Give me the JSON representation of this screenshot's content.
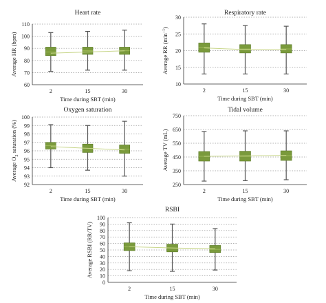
{
  "colors": {
    "box_fill": "#7a9a3c",
    "box_edge": "#5a7a26",
    "whisker": "#555555",
    "trend": "#c8d68a",
    "grid": "#9a9a9a"
  },
  "chart_data": [
    {
      "type": "box",
      "title": "Heart rate",
      "xlabel": "Time during SBT (min)",
      "ylabel": "Average HR (bpm)",
      "ylabel_parts": [
        {
          "t": "Average HR (bpm)"
        }
      ],
      "categories": [
        "2",
        "15",
        "30"
      ],
      "ylim": [
        60,
        110
      ],
      "yticks": [
        60,
        70,
        80,
        90,
        100,
        110
      ],
      "grid": true,
      "boxes": [
        {
          "low": 71,
          "q1": 84,
          "median": 87,
          "q3": 91,
          "high": 103
        },
        {
          "low": 72,
          "q1": 85,
          "median": 88,
          "q3": 91,
          "high": 104
        },
        {
          "low": 72,
          "q1": 85,
          "median": 88,
          "q3": 91,
          "high": 105
        }
      ],
      "trend": [
        86,
        87,
        88
      ]
    },
    {
      "type": "box",
      "title": "Respiratory rate",
      "xlabel": "Time during SBT (min)",
      "ylabel": "Average RR (min−1)",
      "ylabel_parts": [
        {
          "t": "Average RR (min"
        },
        {
          "t": "−1",
          "sup": true
        },
        {
          "t": ")"
        }
      ],
      "categories": [
        "2",
        "15",
        "30"
      ],
      "ylim": [
        10,
        30
      ],
      "yticks": [
        10,
        15,
        20,
        25,
        30
      ],
      "grid": true,
      "boxes": [
        {
          "low": 13,
          "q1": 19.5,
          "median": 21,
          "q3": 22.3,
          "high": 28
        },
        {
          "low": 13,
          "q1": 19.3,
          "median": 20.5,
          "q3": 21.8,
          "high": 27.5
        },
        {
          "low": 13,
          "q1": 19.3,
          "median": 20.5,
          "q3": 21.8,
          "high": 27.3
        }
      ],
      "trend": [
        20.8,
        20.3,
        20.3
      ]
    },
    {
      "type": "box",
      "title": "Oxygen saturation",
      "xlabel": "Time during SBT (min)",
      "ylabel": "Average O2 saturation (%)",
      "ylabel_parts": [
        {
          "t": "Average O"
        },
        {
          "t": "2",
          "sub": true
        },
        {
          "t": " saturation (%)"
        }
      ],
      "categories": [
        "2",
        "15",
        "30"
      ],
      "ylim": [
        92,
        100
      ],
      "yticks": [
        92,
        93,
        94,
        95,
        96,
        97,
        98,
        99,
        100
      ],
      "grid": true,
      "boxes": [
        {
          "low": 94,
          "q1": 96.2,
          "median": 96.6,
          "q3": 97,
          "high": 99.1
        },
        {
          "low": 93.7,
          "q1": 95.8,
          "median": 96.3,
          "q3": 96.8,
          "high": 99
        },
        {
          "low": 93,
          "q1": 95.7,
          "median": 96.2,
          "q3": 96.7,
          "high": 99.5
        }
      ],
      "trend": [
        96.5,
        96.3,
        96.1
      ]
    },
    {
      "type": "box",
      "title": "Tidal volume",
      "xlabel": "Time during SBT (min)",
      "ylabel": "Average TV (mL)",
      "ylabel_parts": [
        {
          "t": "Average TV (mL)"
        }
      ],
      "categories": [
        "2",
        "15",
        "30"
      ],
      "ylim": [
        250,
        750
      ],
      "yticks": [
        250,
        350,
        450,
        550,
        650,
        750
      ],
      "grid": true,
      "boxes": [
        {
          "low": 275,
          "q1": 420,
          "median": 455,
          "q3": 490,
          "high": 635
        },
        {
          "low": 278,
          "q1": 420,
          "median": 455,
          "q3": 492,
          "high": 640
        },
        {
          "low": 285,
          "q1": 425,
          "median": 460,
          "q3": 495,
          "high": 640
        }
      ],
      "trend": [
        455,
        458,
        462
      ]
    },
    {
      "type": "box",
      "title": "RSBI",
      "xlabel": "Time during SBT (min)",
      "ylabel": "Average RSBI (RR/TV)",
      "ylabel_parts": [
        {
          "t": "Average RSBI (RR/TV)"
        }
      ],
      "categories": [
        "2",
        "15",
        "30"
      ],
      "ylim": [
        0,
        100
      ],
      "yticks": [
        0,
        10,
        20,
        30,
        40,
        50,
        60,
        70,
        80,
        90,
        100
      ],
      "grid": true,
      "boxes": [
        {
          "low": 18,
          "q1": 49,
          "median": 55,
          "q3": 61,
          "high": 92
        },
        {
          "low": 17,
          "q1": 47,
          "median": 53,
          "q3": 59,
          "high": 90
        },
        {
          "low": 19,
          "q1": 46,
          "median": 51,
          "q3": 57,
          "high": 83
        }
      ],
      "trend": [
        55,
        53,
        52
      ]
    }
  ]
}
